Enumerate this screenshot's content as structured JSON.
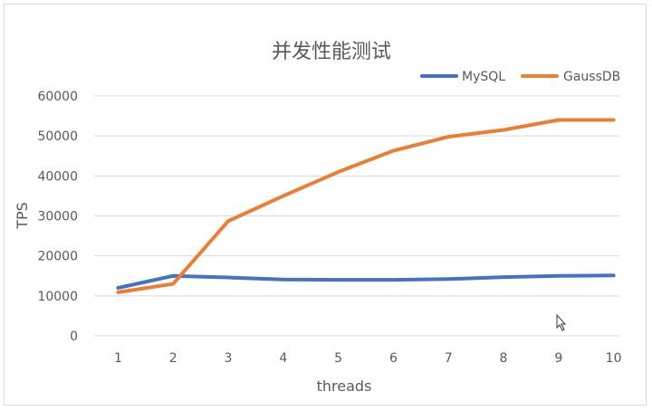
{
  "chart_data": {
    "type": "line",
    "title": "并发性能测试",
    "xlabel": "threads",
    "ylabel": "TPS",
    "categories": [
      "1",
      "2",
      "3",
      "4",
      "5",
      "6",
      "7",
      "8",
      "9",
      "10"
    ],
    "ylim": [
      0,
      60000
    ],
    "yticks": [
      0,
      10000,
      20000,
      30000,
      40000,
      50000,
      60000
    ],
    "grid": true,
    "legend_position": "top-right",
    "series": [
      {
        "name": "MySQL",
        "color": "#4472c4",
        "values": [
          12000,
          15000,
          14600,
          14100,
          14000,
          14000,
          14200,
          14700,
          15000,
          15100
        ]
      },
      {
        "name": "GaussDB",
        "color": "#ed7d31",
        "values": [
          10900,
          13000,
          28700,
          35000,
          41000,
          46300,
          49800,
          51500,
          54000,
          54000
        ]
      }
    ]
  }
}
